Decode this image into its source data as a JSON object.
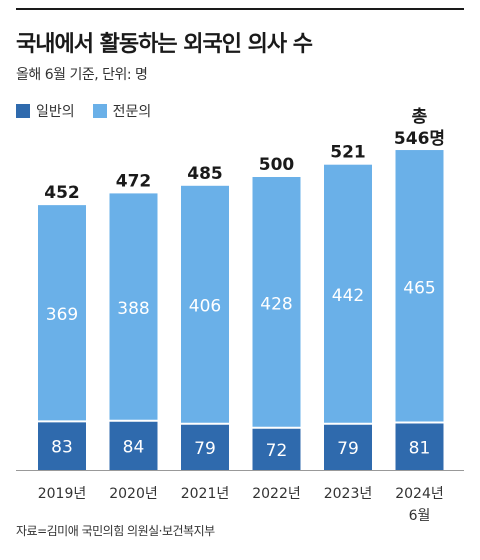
{
  "title": "국내에서 활동하는 외국인 의사 수",
  "subtitle": "올해 6월 기준, 단위: 명",
  "legend": [
    {
      "label": "일반의",
      "color": "#2f6aad"
    },
    {
      "label": "전문의",
      "color": "#6ab0e8"
    }
  ],
  "source": "자료=김미애 국민의힘 의원실·보건복지부",
  "chart_data": {
    "type": "bar",
    "stacked": true,
    "categories": [
      "2019년",
      "2020년",
      "2021년",
      "2022년",
      "2023년",
      "2024년 6월"
    ],
    "series": [
      {
        "name": "일반의",
        "color": "#2f6aad",
        "values": [
          83,
          84,
          79,
          72,
          79,
          81
        ]
      },
      {
        "name": "전문의",
        "color": "#6ab0e8",
        "values": [
          369,
          388,
          406,
          428,
          442,
          465
        ]
      }
    ],
    "totals": [
      452,
      472,
      485,
      500,
      521,
      546
    ],
    "total_label_prefix": "총",
    "total_label_suffix": "명"
  }
}
